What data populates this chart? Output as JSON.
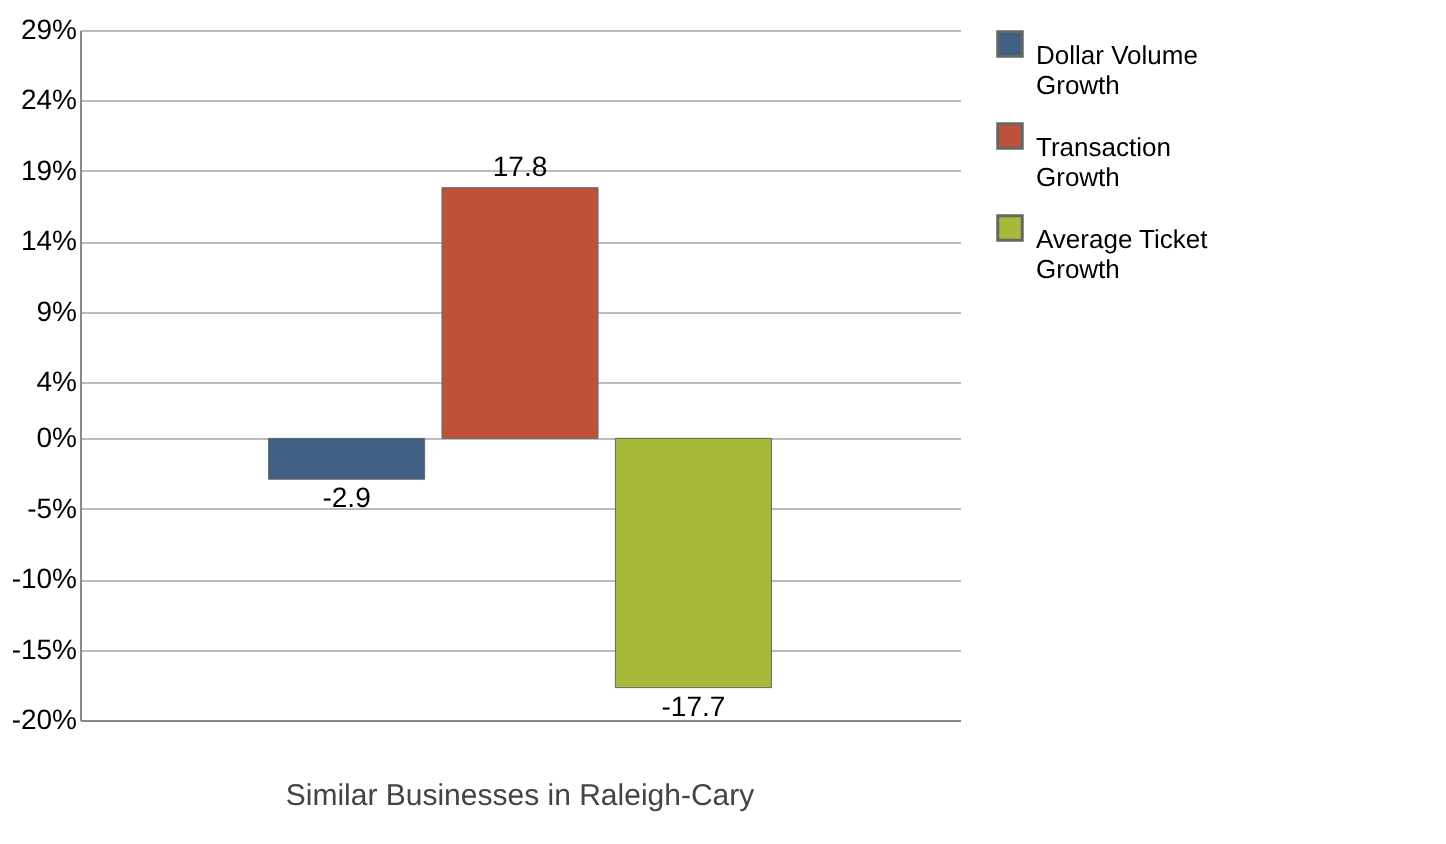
{
  "chart_data": {
    "type": "bar",
    "categories": [
      "Similar Businesses in Raleigh-Cary"
    ],
    "series": [
      {
        "name": "Dollar Volume Growth",
        "color": "#3f5f85",
        "values": [
          -2.9
        ]
      },
      {
        "name": "Transaction Growth",
        "color": "#c0503a",
        "values": [
          17.8
        ]
      },
      {
        "name": "Average Ticket Growth",
        "color": "#a8b93a",
        "values": [
          -17.7
        ]
      }
    ],
    "ylim": [
      -20,
      29
    ],
    "yticks": [
      {
        "value": -20,
        "label": "-20%"
      },
      {
        "value": -15,
        "label": "-15%"
      },
      {
        "value": -10,
        "label": "-10%"
      },
      {
        "value": -5,
        "label": "-5%"
      },
      {
        "value": 0,
        "label": "0%"
      },
      {
        "value": 4,
        "label": "4%"
      },
      {
        "value": 9,
        "label": "9%"
      },
      {
        "value": 14,
        "label": "14%"
      },
      {
        "value": 19,
        "label": "19%"
      },
      {
        "value": 24,
        "label": "24%"
      },
      {
        "value": 29,
        "label": "29%"
      }
    ],
    "grid": "y",
    "legend": "right",
    "data_labels": true
  }
}
